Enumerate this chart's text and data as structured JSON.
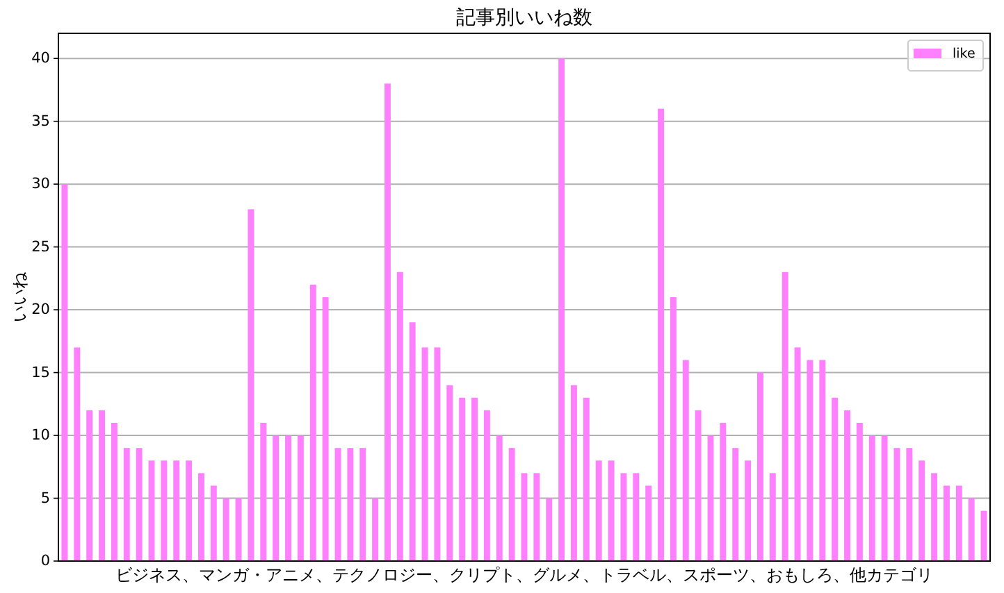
{
  "chart_data": {
    "type": "bar",
    "title": "記事別いいね数",
    "xlabel": "ビジネス、マンガ・アニメ、テクノロジー、クリプト、グルメ、トラベル、スポーツ、おもしろ、他カテゴリ",
    "ylabel": "いいね",
    "categories": [
      null,
      null,
      null,
      null,
      null,
      null,
      null,
      null,
      null,
      null,
      null,
      null,
      null,
      null,
      null,
      null,
      null,
      null,
      null,
      null,
      null,
      null,
      null,
      null,
      null,
      null,
      null,
      null,
      null,
      null,
      null,
      null,
      null,
      null,
      null,
      null,
      null,
      null,
      null,
      null,
      null,
      null,
      null,
      null,
      null,
      null,
      null,
      null,
      null,
      null,
      null,
      null,
      null,
      null,
      null,
      null,
      null,
      null,
      null,
      null,
      null,
      null,
      null,
      null,
      null,
      null,
      null,
      null,
      null,
      null,
      null,
      null,
      null,
      null,
      null
    ],
    "series": [
      {
        "name": "like",
        "color": "#ff80ff",
        "values": [
          30,
          17,
          12,
          12,
          11,
          9,
          9,
          8,
          8,
          8,
          8,
          7,
          6,
          5,
          5,
          28,
          11,
          10,
          10,
          10,
          22,
          21,
          9,
          9,
          9,
          5,
          38,
          23,
          19,
          17,
          17,
          14,
          13,
          13,
          12,
          10,
          9,
          7,
          7,
          5,
          40,
          14,
          13,
          8,
          8,
          7,
          7,
          6,
          36,
          21,
          16,
          12,
          10,
          11,
          9,
          8,
          15,
          7,
          23,
          17,
          16,
          16,
          13,
          12,
          11,
          10,
          10,
          9,
          9,
          8,
          7,
          6,
          6,
          5,
          4
        ]
      }
    ],
    "ylim": [
      0,
      42
    ],
    "yticks": [
      0,
      5,
      10,
      15,
      20,
      25,
      30,
      35,
      40
    ],
    "grid": "y",
    "legend": "top right"
  }
}
